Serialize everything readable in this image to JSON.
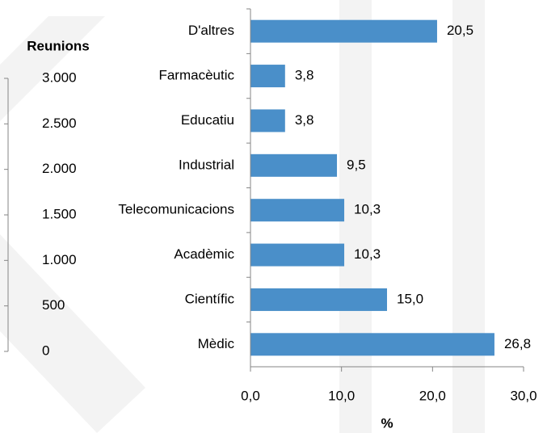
{
  "chart_data": [
    {
      "type": "barh",
      "categories": [
        "D'altres",
        "Farmacèutic",
        "Educatiu",
        "Industrial",
        "Telecomunicacions",
        "Acadèmic",
        "Científic",
        "Mèdic"
      ],
      "values": [
        20.5,
        3.8,
        3.8,
        9.5,
        10.3,
        10.3,
        15.0,
        26.8
      ],
      "value_labels": [
        "20,5",
        "3,8",
        "3,8",
        "9,5",
        "10,3",
        "10,3",
        "15,0",
        "26,8"
      ],
      "color": "#4a8fc9",
      "xlabel": "%",
      "xlim": [
        0,
        30
      ],
      "xticks": [
        {
          "value": 0,
          "label": "0,0"
        },
        {
          "value": 10,
          "label": "10,0"
        },
        {
          "value": 20,
          "label": "20,0"
        },
        {
          "value": 30,
          "label": "30,0"
        }
      ]
    },
    {
      "type": "axis",
      "ylabel": "Reunions",
      "ylim": [
        0,
        3000
      ],
      "yticks": [
        0,
        500,
        {
          "value": 1000,
          "label": "1.000"
        },
        {
          "value": 1500,
          "label": "1.500"
        },
        {
          "value": 2000,
          "label": "2.000"
        },
        {
          "value": 2500,
          "label": "2.500"
        },
        {
          "value": 3000,
          "label": "3.000"
        }
      ]
    }
  ]
}
